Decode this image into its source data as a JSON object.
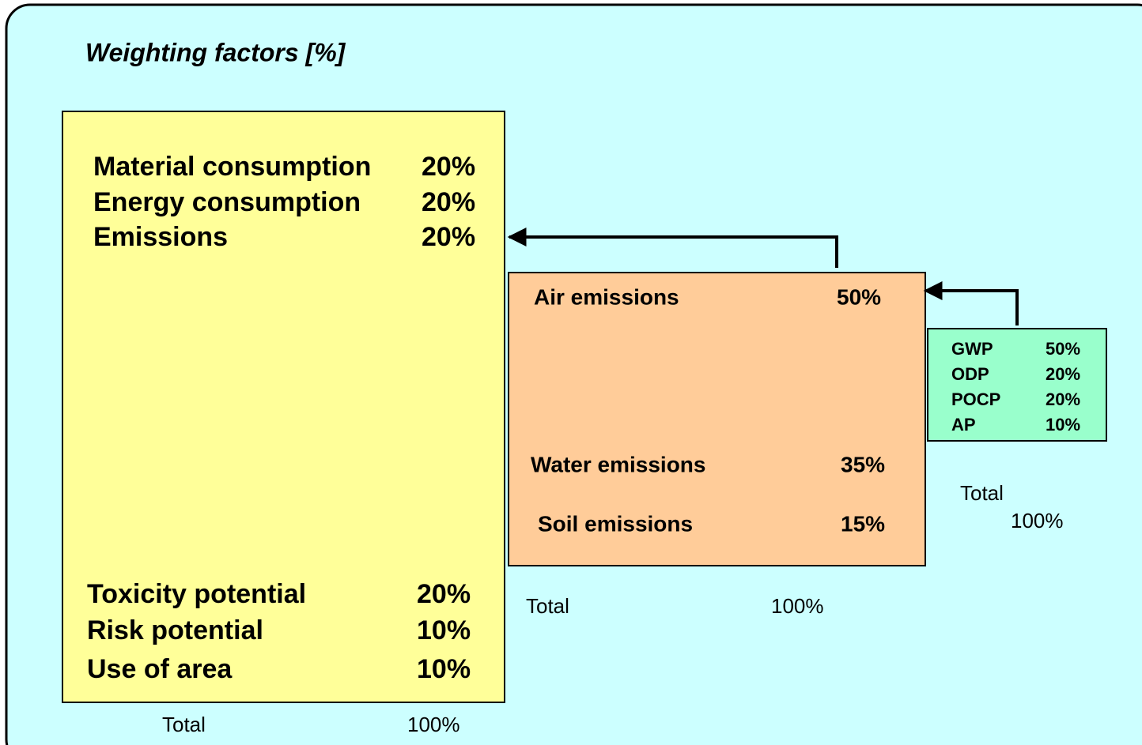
{
  "title": "Weighting factors [%]",
  "main": {
    "items": [
      {
        "label": "Material consumption",
        "value": "20%"
      },
      {
        "label": "Energy consumption",
        "value": "20%"
      },
      {
        "label": "Emissions",
        "value": "20%"
      },
      {
        "label": "Toxicity potential",
        "value": "20%"
      },
      {
        "label": "Risk potential",
        "value": "10%"
      },
      {
        "label": "Use of area",
        "value": "10%"
      }
    ],
    "total": {
      "label": "Total",
      "value": "100%"
    }
  },
  "emissions": {
    "items": [
      {
        "label": "Air emissions",
        "value": "50%"
      },
      {
        "label": "Water emissions",
        "value": "35%"
      },
      {
        "label": "Soil emissions",
        "value": "15%"
      }
    ],
    "total": {
      "label": "Total",
      "value": "100%"
    }
  },
  "air": {
    "items": [
      {
        "label": "GWP",
        "value": "50%"
      },
      {
        "label": "ODP",
        "value": "20%"
      },
      {
        "label": "POCP",
        "value": "20%"
      },
      {
        "label": "AP",
        "value": "10%"
      }
    ],
    "total": {
      "label": "Total",
      "value": "100%"
    }
  }
}
